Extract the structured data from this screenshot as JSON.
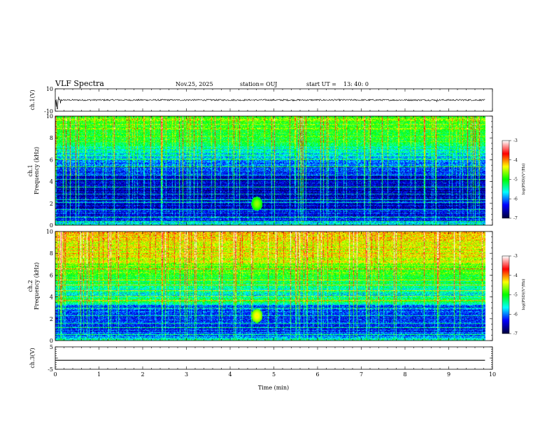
{
  "header": {
    "title": "VLF Spectra",
    "date": "Nov.25, 2025",
    "station": "station= OUJ",
    "start_ut_label": "start  UT  =",
    "start_ut_value": "13: 40: 0"
  },
  "chart_data": {
    "type": "heatmap",
    "title": "VLF Spectra",
    "x": {
      "label": "Time  (min)",
      "range": [
        0,
        10
      ],
      "ticks": [
        0,
        1,
        2,
        3,
        4,
        5,
        6,
        7,
        8,
        9,
        10
      ],
      "data_end": 9.83
    },
    "panels": [
      {
        "id": "ch1-wave",
        "type": "line",
        "ylabel": "ch.1(V)",
        "ylim": [
          -10,
          10
        ],
        "yticks": [
          10,
          -10
        ],
        "mean": 0.0,
        "amplitude": 0.7,
        "spikes": [
          {
            "t": 0.02,
            "v": -6
          },
          {
            "t": 0.05,
            "v": -8
          },
          {
            "t": 0.08,
            "v": 3
          },
          {
            "t": 0.12,
            "v": -3
          },
          {
            "t": 8.73,
            "v": -1.5
          }
        ]
      },
      {
        "id": "ch1-spec",
        "type": "heatmap",
        "ylabel_channel": "ch.1",
        "ylabel": "Frequency  (kHz)",
        "ylim": [
          0,
          10
        ],
        "yticks": [
          0,
          2,
          4,
          6,
          8,
          10
        ],
        "color_range": [
          -7,
          -3
        ],
        "background_log_psd": [
          [
            0,
            -5.4
          ],
          [
            0.5,
            -6.2
          ],
          [
            1.5,
            -6.5
          ],
          [
            3,
            -6.6
          ],
          [
            4.5,
            -6.5
          ],
          [
            5.5,
            -6.1
          ],
          [
            6.5,
            -5.6
          ],
          [
            8,
            -5.0
          ],
          [
            10,
            -4.8
          ]
        ],
        "tone_lines_khz": [
          0.4,
          0.8,
          1.5,
          2.1,
          2.4,
          2.9,
          3.5,
          4.2,
          4.6,
          5.4,
          6.1
        ],
        "blob": {
          "time_min": 4.6,
          "freq_khz": 2.0,
          "log_psd": -4.6
        }
      },
      {
        "id": "ch2-spec",
        "type": "heatmap",
        "ylabel_channel": "ch.2",
        "ylabel": "Frequency  (kHz)",
        "ylim": [
          0,
          10
        ],
        "yticks": [
          0,
          2,
          4,
          6,
          8,
          10
        ],
        "color_range": [
          -7,
          -3
        ],
        "background_log_psd": [
          [
            0,
            -5.6
          ],
          [
            1,
            -6.3
          ],
          [
            2,
            -6.3
          ],
          [
            3.2,
            -6.2
          ],
          [
            3.6,
            -5.0
          ],
          [
            4.0,
            -5.6
          ],
          [
            5.2,
            -5.3
          ],
          [
            6.5,
            -4.8
          ],
          [
            8,
            -4.4
          ],
          [
            10,
            -4.2
          ]
        ],
        "tone_lines_khz": [
          0.6,
          1.2,
          1.6,
          2.3,
          3.0,
          3.7,
          4.1,
          4.6,
          5.1,
          5.6,
          6.6
        ],
        "blob": {
          "time_min": 4.6,
          "freq_khz": 2.3,
          "log_psd": -4.3
        }
      },
      {
        "id": "ch3-wave",
        "type": "line",
        "ylabel": "ch.3(V)",
        "ylim": [
          -5,
          5
        ],
        "yticks": [
          5,
          0,
          -5
        ],
        "yticklabels": [
          "5",
          "",
          "-5"
        ],
        "value": -1.0
      }
    ],
    "colorbar": {
      "label": "log(PSD)(V²/Hz)",
      "min": -7,
      "max": -3,
      "ticks": [
        -3,
        -4,
        -5,
        -6,
        -7
      ],
      "stops": [
        "#000040",
        "#0000ff",
        "#00ffff",
        "#00ff00",
        "#ffff00",
        "#ff0000",
        "#ffffff"
      ]
    }
  }
}
